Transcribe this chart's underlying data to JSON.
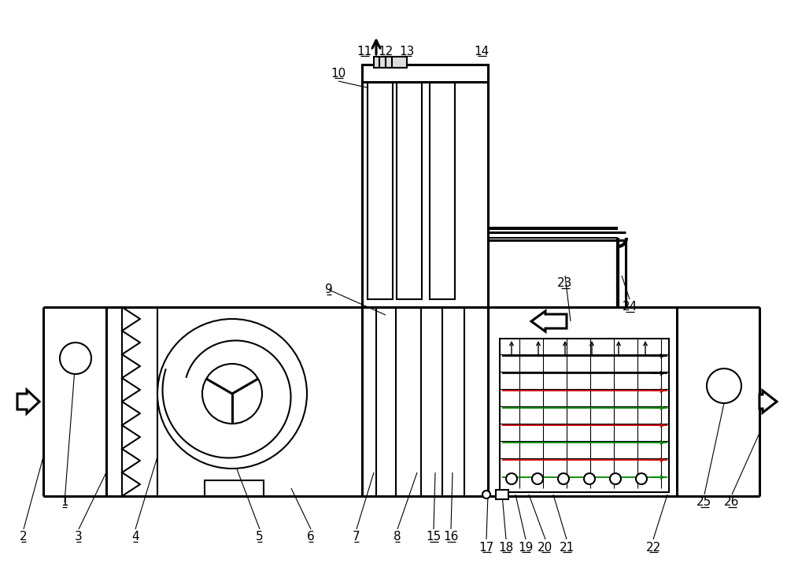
{
  "bg_color": "#ffffff",
  "lc": "#000000",
  "lw": 1.5,
  "lw2": 2.2,
  "lw3": 3.0,
  "red_color": "#cc0000",
  "green_color": "#008800",
  "figsize": [
    10.0,
    7.34
  ],
  "dpi": 100,
  "labels": [
    [
      82,
      638,
      "1"
    ],
    [
      30,
      682,
      "2"
    ],
    [
      100,
      682,
      "3"
    ],
    [
      172,
      682,
      "4"
    ],
    [
      330,
      682,
      "5"
    ],
    [
      395,
      682,
      "6"
    ],
    [
      453,
      682,
      "7"
    ],
    [
      505,
      682,
      "8"
    ],
    [
      418,
      368,
      "9"
    ],
    [
      430,
      93,
      "10"
    ],
    [
      463,
      65,
      "11"
    ],
    [
      490,
      65,
      "12"
    ],
    [
      517,
      65,
      "13"
    ],
    [
      612,
      65,
      "14"
    ],
    [
      551,
      682,
      "15"
    ],
    [
      573,
      682,
      "16"
    ],
    [
      618,
      695,
      "17"
    ],
    [
      643,
      695,
      "18"
    ],
    [
      668,
      695,
      "19"
    ],
    [
      693,
      695,
      "20"
    ],
    [
      720,
      695,
      "21"
    ],
    [
      830,
      695,
      "22"
    ],
    [
      718,
      360,
      "23"
    ],
    [
      800,
      390,
      "24"
    ],
    [
      895,
      638,
      "25"
    ],
    [
      930,
      638,
      "26"
    ]
  ]
}
